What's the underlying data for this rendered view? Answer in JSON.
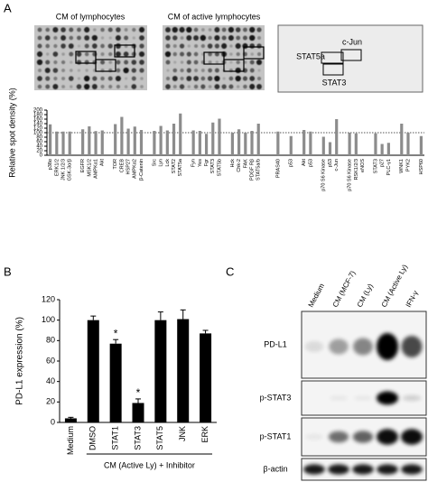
{
  "panel_labels": [
    "A",
    "B",
    "C"
  ],
  "array_images": {
    "titles": [
      "CM of lymphocytes",
      "CM of active lymphocytes"
    ]
  },
  "schematic": {
    "labels": [
      "STAT5a",
      "c-Jun",
      "STAT3"
    ]
  },
  "chart_data": [
    {
      "type": "bar",
      "ylabel": "Relative spot density (%)",
      "categories": [
        "p38α",
        "ERK1/2",
        "JNK 1/2/3",
        "GSK-3α/β",
        null,
        "EGFR",
        "MSK1/2",
        "AMPKα1",
        "Akt",
        null,
        "TOR",
        "CREB",
        "HSP27",
        "AMPKα2",
        "β-Catenin",
        null,
        "Src",
        "Lyn",
        "Lck",
        "STAT2",
        "STAT5a",
        null,
        "Fyn",
        "Yes",
        "Fgr",
        "STAT3",
        "STAT5b",
        null,
        "Hck",
        "Chk-2",
        "FAK",
        "PDGF Rβ",
        "STAT5a/b",
        null,
        null,
        "PRAS40",
        null,
        "p53",
        null,
        "Akt",
        "p53",
        null,
        "p70 S6 Kinase",
        "p53",
        "c-Jun",
        null,
        "p70 S6 Kinase",
        "RSK1/2/3",
        "eNOS",
        null,
        "STAT3",
        "p27",
        "PLC-γ1",
        null,
        "WNK1",
        "PYK2",
        null,
        "HSP60"
      ],
      "values": [
        137,
        105,
        105,
        105,
        null,
        115,
        128,
        107,
        110,
        null,
        138,
        170,
        118,
        127,
        112,
        null,
        108,
        130,
        110,
        140,
        185,
        null,
        110,
        108,
        95,
        145,
        162,
        null,
        100,
        115,
        100,
        108,
        140,
        null,
        null,
        105,
        null,
        85,
        null,
        112,
        105,
        null,
        82,
        58,
        160,
        null,
        100,
        97,
        null,
        null,
        97,
        50,
        55,
        null,
        140,
        100,
        null,
        85
      ],
      "color": "#8c8c8c",
      "ylim": [
        0,
        200
      ],
      "yticks": [
        0,
        20,
        40,
        60,
        80,
        100,
        120,
        140,
        160,
        180,
        200
      ],
      "reference_line": 100
    },
    {
      "type": "bar",
      "ylabel": "PD-L1 expression (%)",
      "categories": [
        "Medium",
        "DMSO",
        "STAT1",
        "STAT3",
        "STAT5",
        "JNK",
        "ERK"
      ],
      "values": [
        4,
        100,
        77,
        19,
        100,
        101,
        87
      ],
      "errors": [
        1,
        4,
        4,
        4,
        8,
        9,
        3
      ],
      "annotations": [
        null,
        null,
        "*",
        "*",
        null,
        null,
        null
      ],
      "group_label": "CM (Active Ly) + Inhibitor",
      "color": "#000000",
      "ylim": [
        0,
        120
      ],
      "yticks": [
        0,
        20,
        40,
        60,
        80,
        100,
        120
      ]
    }
  ],
  "blot": {
    "lanes": [
      "Medium",
      "CM (MCF-7)",
      "CM (Ly)",
      "CM (Active Ly)",
      "IFN-γ"
    ],
    "rows": [
      "PD-L1",
      "p-STAT3",
      "p-STAT1",
      "β-actin"
    ]
  }
}
